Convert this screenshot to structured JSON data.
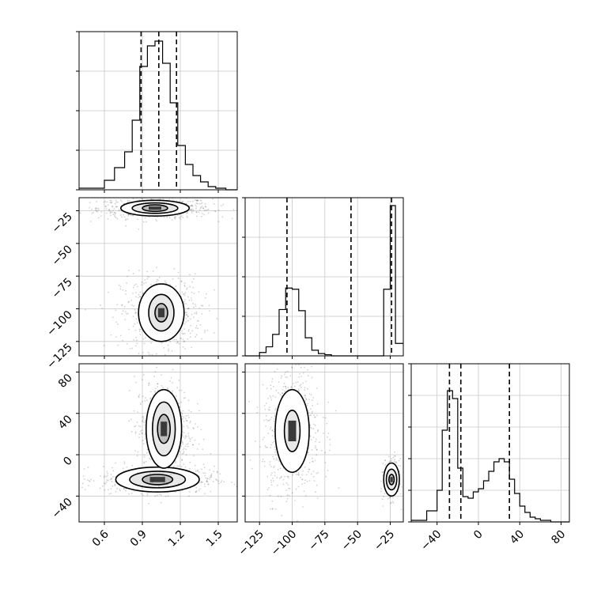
{
  "chart_data": {
    "type": "corner",
    "title": "",
    "grid": true,
    "parameters": [
      {
        "range": [
          0.4,
          1.65
        ],
        "ticks": [
          0.6,
          0.9,
          1.2,
          1.5
        ],
        "tick_labels": [
          "0.6",
          "0.9",
          "1.2",
          "1.5"
        ],
        "quantiles": [
          0.89,
          1.03,
          1.17
        ]
      },
      {
        "range": [
          -136,
          -15
        ],
        "ticks": [
          -125,
          -100,
          -75,
          -50,
          -25
        ],
        "tick_labels": [
          "−125",
          "−100",
          "−75",
          "−50",
          "−25"
        ],
        "quantiles": [
          -104,
          -55,
          -24
        ]
      },
      {
        "range": [
          -65,
          88
        ],
        "ticks": [
          -40,
          0,
          40,
          80
        ],
        "tick_labels": [
          "−40",
          "0",
          "40",
          "80"
        ],
        "quantiles": [
          -28,
          -17,
          30
        ]
      }
    ],
    "histograms": [
      {
        "param": 0,
        "edges": [
          0.4,
          0.6,
          0.68,
          0.76,
          0.82,
          0.88,
          0.94,
          1.0,
          1.06,
          1.12,
          1.18,
          1.24,
          1.3,
          1.36,
          1.42,
          1.48,
          1.56,
          1.65
        ],
        "counts": [
          1,
          6,
          14,
          24,
          44,
          78,
          91,
          94,
          80,
          55,
          28,
          16,
          9,
          5,
          2,
          1,
          0
        ],
        "ylim": [
          0,
          100
        ],
        "yticks": [
          0,
          25,
          50,
          75,
          100
        ]
      },
      {
        "param": 1,
        "edges": [
          -136,
          -125,
          -120,
          -115,
          -110,
          -105,
          -100,
          -95,
          -90,
          -85,
          -80,
          -75,
          -70,
          -65,
          -30,
          -25,
          -21,
          -15
        ],
        "counts": [
          0,
          3,
          8,
          19,
          41,
          60,
          59,
          40,
          16,
          5,
          2,
          1,
          0,
          0,
          59,
          133,
          11
        ],
        "ylim": [
          0,
          140
        ],
        "yticks": [
          0,
          35,
          70,
          105,
          140
        ]
      },
      {
        "param": 2,
        "edges": [
          -65,
          -50,
          -40,
          -35,
          -30,
          -25,
          -20,
          -15,
          -10,
          -5,
          0,
          5,
          10,
          15,
          20,
          25,
          30,
          35,
          40,
          45,
          50,
          55,
          60,
          70,
          88
        ],
        "counts": [
          1,
          7,
          20,
          58,
          83,
          78,
          34,
          16,
          15,
          19,
          21,
          26,
          32,
          38,
          40,
          38,
          27,
          18,
          10,
          6,
          3,
          2,
          1,
          0
        ],
        "ylim": [
          0,
          100
        ],
        "yticks": [
          0,
          20,
          40,
          60,
          80,
          100
        ]
      }
    ],
    "scatter_panels": [
      {
        "x_param": 0,
        "y_param": 1,
        "clusters": [
          {
            "cx": 1.0,
            "cy": -23,
            "sx": 0.14,
            "sy": 2.5,
            "n": 650,
            "contours": [
              [
                0.27,
                6
              ],
              [
                0.18,
                4
              ],
              [
                0.1,
                2.5
              ]
            ]
          },
          {
            "cx": 1.05,
            "cy": -103,
            "sx": 0.1,
            "sy": 9,
            "n": 550,
            "contours": [
              [
                0.18,
                22
              ],
              [
                0.1,
                14
              ],
              [
                0.05,
                7
              ]
            ]
          }
        ]
      },
      {
        "x_param": 0,
        "y_param": 2,
        "clusters": [
          {
            "cx": 1.02,
            "cy": -24,
            "sx": 0.14,
            "sy": 4,
            "n": 650,
            "contours": [
              [
                0.33,
                12
              ],
              [
                0.22,
                8
              ],
              [
                0.12,
                5
              ]
            ]
          },
          {
            "cx": 1.07,
            "cy": 25,
            "sx": 0.07,
            "sy": 15,
            "n": 550,
            "contours": [
              [
                0.14,
                38
              ],
              [
                0.09,
                26
              ],
              [
                0.05,
                14
              ]
            ]
          }
        ]
      },
      {
        "x_param": 1,
        "y_param": 2,
        "clusters": [
          {
            "cx": -100,
            "cy": 23,
            "sx": 7,
            "sy": 20,
            "n": 650,
            "contours": [
              [
                13,
                40
              ],
              [
                6,
                20
              ]
            ]
          },
          {
            "cx": -24,
            "cy": -24,
            "sx": 1.8,
            "sy": 6,
            "n": 300,
            "contours": [
              [
                6,
                16
              ],
              [
                4,
                10
              ],
              [
                2,
                5
              ]
            ]
          }
        ]
      }
    ]
  }
}
